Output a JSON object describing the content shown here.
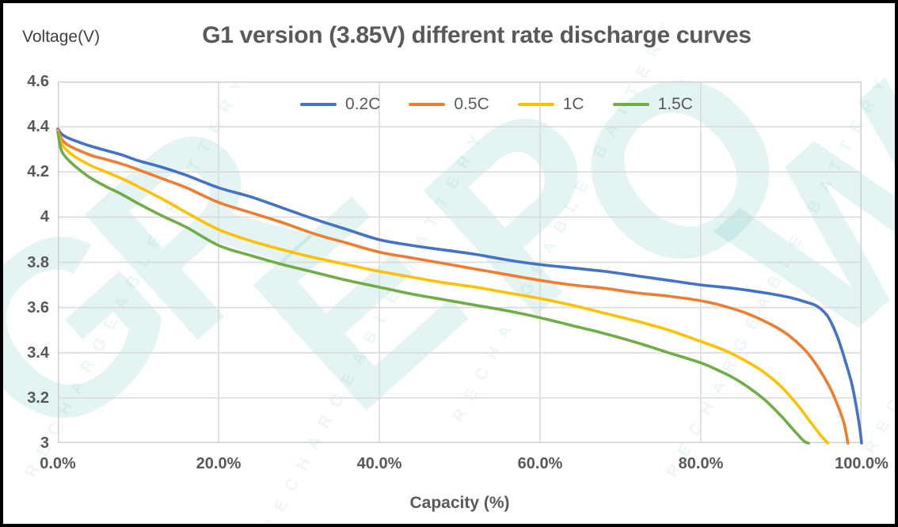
{
  "chart_data": {
    "type": "line",
    "title": "G1 version (3.85V) different rate discharge curves",
    "xlabel": "Capacity (%)",
    "ylabel": "Voltage(V)",
    "xlim": [
      0,
      100
    ],
    "ylim": [
      3,
      4.6
    ],
    "grid": true,
    "legend_position": "top-center-inside",
    "x_ticks": {
      "values": [
        0,
        20,
        40,
        60,
        80,
        100
      ],
      "labels": [
        "0.0%",
        "20.0%",
        "40.0%",
        "60.0%",
        "80.0%",
        "100.0%"
      ]
    },
    "y_ticks": {
      "values": [
        4.6,
        4.4,
        4.2,
        4.0,
        3.8,
        3.6,
        3.4,
        3.2,
        3.0
      ],
      "labels": [
        "4.6",
        "4.4",
        "4.2",
        "4",
        "3.8",
        "3.6",
        "3.4",
        "3.2",
        "3"
      ]
    },
    "series": [
      {
        "name": "0.2C",
        "color": "#4472C4",
        "points": [
          [
            0,
            4.39
          ],
          [
            0.4,
            4.37
          ],
          [
            1,
            4.355
          ],
          [
            2,
            4.34
          ],
          [
            4,
            4.315
          ],
          [
            6,
            4.295
          ],
          [
            8,
            4.275
          ],
          [
            10,
            4.25
          ],
          [
            13,
            4.22
          ],
          [
            16,
            4.185
          ],
          [
            20,
            4.13
          ],
          [
            24,
            4.09
          ],
          [
            28,
            4.04
          ],
          [
            32,
            3.99
          ],
          [
            36,
            3.945
          ],
          [
            40,
            3.9
          ],
          [
            44,
            3.875
          ],
          [
            48,
            3.855
          ],
          [
            52,
            3.835
          ],
          [
            56,
            3.81
          ],
          [
            60,
            3.79
          ],
          [
            64,
            3.775
          ],
          [
            68,
            3.76
          ],
          [
            72,
            3.74
          ],
          [
            76,
            3.72
          ],
          [
            80,
            3.7
          ],
          [
            84,
            3.685
          ],
          [
            88,
            3.665
          ],
          [
            91,
            3.645
          ],
          [
            93,
            3.625
          ],
          [
            94.5,
            3.605
          ],
          [
            95.8,
            3.56
          ],
          [
            97,
            3.47
          ],
          [
            98,
            3.36
          ],
          [
            98.8,
            3.26
          ],
          [
            99.4,
            3.15
          ],
          [
            99.8,
            3.06
          ],
          [
            100,
            3.0
          ]
        ]
      },
      {
        "name": "0.5C",
        "color": "#ED7D31",
        "points": [
          [
            0,
            4.385
          ],
          [
            0.4,
            4.35
          ],
          [
            1,
            4.325
          ],
          [
            2,
            4.305
          ],
          [
            4,
            4.275
          ],
          [
            6,
            4.255
          ],
          [
            8,
            4.235
          ],
          [
            10,
            4.21
          ],
          [
            13,
            4.17
          ],
          [
            16,
            4.13
          ],
          [
            20,
            4.065
          ],
          [
            24,
            4.02
          ],
          [
            28,
            3.975
          ],
          [
            32,
            3.925
          ],
          [
            36,
            3.885
          ],
          [
            40,
            3.845
          ],
          [
            44,
            3.82
          ],
          [
            48,
            3.795
          ],
          [
            52,
            3.77
          ],
          [
            56,
            3.745
          ],
          [
            60,
            3.72
          ],
          [
            64,
            3.7
          ],
          [
            68,
            3.685
          ],
          [
            72,
            3.665
          ],
          [
            76,
            3.65
          ],
          [
            80,
            3.63
          ],
          [
            83,
            3.605
          ],
          [
            86,
            3.57
          ],
          [
            89,
            3.52
          ],
          [
            91,
            3.475
          ],
          [
            93,
            3.41
          ],
          [
            94.5,
            3.34
          ],
          [
            96,
            3.25
          ],
          [
            97,
            3.17
          ],
          [
            97.8,
            3.09
          ],
          [
            98.3,
            3.0
          ]
        ]
      },
      {
        "name": "1C",
        "color": "#FFC000",
        "points": [
          [
            0,
            4.38
          ],
          [
            0.4,
            4.33
          ],
          [
            1,
            4.3
          ],
          [
            2,
            4.27
          ],
          [
            4,
            4.23
          ],
          [
            6,
            4.2
          ],
          [
            8,
            4.17
          ],
          [
            10,
            4.135
          ],
          [
            13,
            4.08
          ],
          [
            16,
            4.02
          ],
          [
            20,
            3.945
          ],
          [
            24,
            3.895
          ],
          [
            28,
            3.855
          ],
          [
            32,
            3.82
          ],
          [
            36,
            3.79
          ],
          [
            40,
            3.76
          ],
          [
            44,
            3.735
          ],
          [
            48,
            3.71
          ],
          [
            52,
            3.69
          ],
          [
            56,
            3.665
          ],
          [
            60,
            3.64
          ],
          [
            64,
            3.61
          ],
          [
            68,
            3.575
          ],
          [
            72,
            3.54
          ],
          [
            76,
            3.5
          ],
          [
            80,
            3.45
          ],
          [
            83,
            3.41
          ],
          [
            86,
            3.355
          ],
          [
            88,
            3.31
          ],
          [
            90,
            3.25
          ],
          [
            92,
            3.17
          ],
          [
            93.5,
            3.1
          ],
          [
            94.8,
            3.04
          ],
          [
            95.8,
            3.0
          ]
        ]
      },
      {
        "name": "1.5C",
        "color": "#70AD47",
        "points": [
          [
            0,
            4.375
          ],
          [
            0.4,
            4.3
          ],
          [
            1,
            4.265
          ],
          [
            2,
            4.23
          ],
          [
            4,
            4.175
          ],
          [
            6,
            4.135
          ],
          [
            8,
            4.1
          ],
          [
            10,
            4.06
          ],
          [
            13,
            4.005
          ],
          [
            16,
            3.955
          ],
          [
            20,
            3.875
          ],
          [
            24,
            3.83
          ],
          [
            28,
            3.79
          ],
          [
            32,
            3.755
          ],
          [
            36,
            3.72
          ],
          [
            40,
            3.69
          ],
          [
            44,
            3.66
          ],
          [
            48,
            3.635
          ],
          [
            52,
            3.61
          ],
          [
            56,
            3.585
          ],
          [
            60,
            3.555
          ],
          [
            64,
            3.52
          ],
          [
            68,
            3.485
          ],
          [
            72,
            3.445
          ],
          [
            76,
            3.4
          ],
          [
            80,
            3.355
          ],
          [
            82,
            3.325
          ],
          [
            84,
            3.29
          ],
          [
            86,
            3.245
          ],
          [
            88,
            3.19
          ],
          [
            90,
            3.12
          ],
          [
            91.5,
            3.06
          ],
          [
            92.8,
            3.01
          ],
          [
            93.4,
            3.0
          ]
        ]
      }
    ],
    "style": {
      "grid_color": "#D9D9D9",
      "frame_color": "#CFCFCF",
      "line_width": 3.6,
      "text_color": "#595959"
    }
  },
  "watermark": {
    "big_text": "GREPOW",
    "small_text": "RECHARGEABLE BATTERY",
    "big_color": "rgba(40,170,160,0.13)",
    "small_color": "rgba(40,170,160,0.09)"
  }
}
